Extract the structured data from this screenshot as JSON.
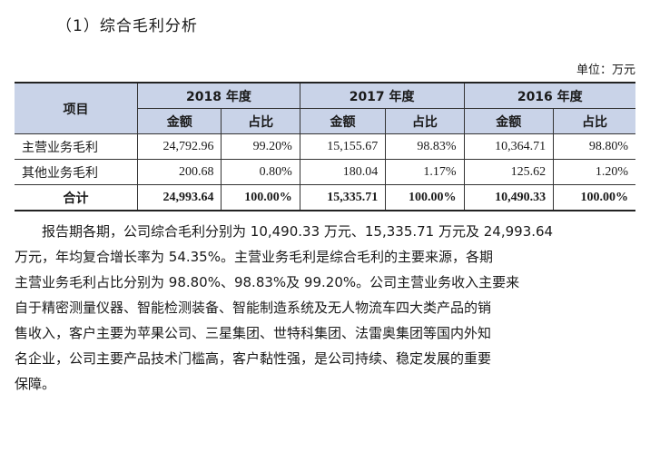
{
  "section": {
    "title": "（1）综合毛利分析"
  },
  "unit": "单位：万元",
  "table": {
    "item_header": "项目",
    "years": [
      "2018 年度",
      "2017 年度",
      "2016 年度"
    ],
    "sub_amount": "金额",
    "sub_ratio": "占比",
    "rows": [
      {
        "label": "主营业务毛利",
        "values": [
          "24,792.96",
          "99.20%",
          "15,155.67",
          "98.83%",
          "10,364.71",
          "98.80%"
        ]
      },
      {
        "label": "其他业务毛利",
        "values": [
          "200.68",
          "0.80%",
          "180.04",
          "1.17%",
          "125.62",
          "1.20%"
        ]
      },
      {
        "label": "合计",
        "values": [
          "24,993.64",
          "100.00%",
          "15,335.71",
          "100.00%",
          "10,490.33",
          "100.00%"
        ]
      }
    ]
  },
  "paragraph": {
    "lines": [
      "报告期各期，公司综合毛利分别为 10,490.33 万元、15,335.71 万元及 24,993.64",
      "万元，年均复合增长率为 54.35%。主营业务毛利是综合毛利的主要来源，各期",
      "主营业务毛利占比分别为 98.80%、98.83%及 99.20%。公司主营业务收入主要来",
      "自于精密测量仪器、智能检测装备、智能制造系统及无人物流车四大类产品的销",
      "售收入，客户主要为苹果公司、三星集团、世特科集团、法雷奥集团等国内外知",
      "名企业，公司主要产品技术门槛高，客户黏性强，是公司持续、稳定发展的重要",
      "保障。"
    ]
  }
}
